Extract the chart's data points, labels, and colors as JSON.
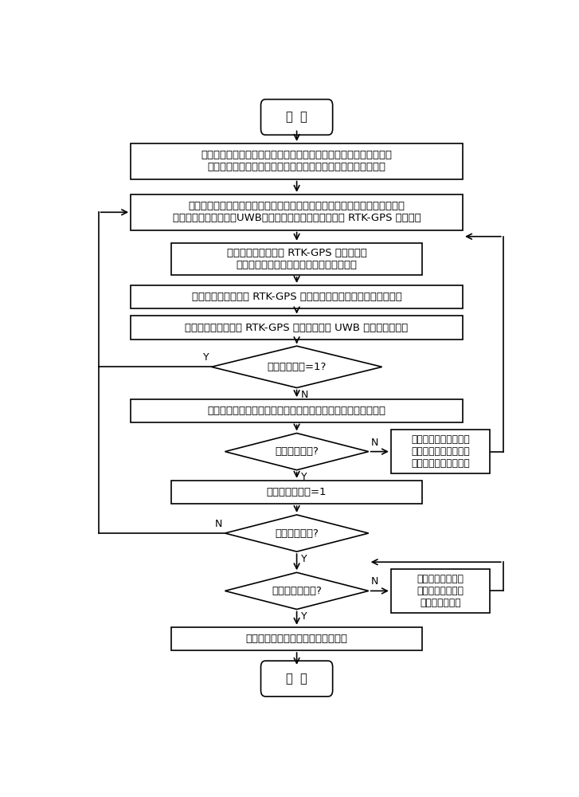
{
  "bg_color": "#ffffff",
  "line_color": "#000000",
  "box_fill": "#ffffff",
  "text_color": "#000000",
  "start_text": "开  始",
  "end_text": "结  束",
  "box1_text": "探测控制主机根据探测任务进行航线规划，设置默认飞行参数、探测\n覆盖率和探测覆盖标志，控制各探测分机到达首条航线起始位置",
  "box2_text": "探测控制主机向各探测分机发送同步探测指令并控制其按设置参数飞行，在指\n令中约定天然电磁场、UWB雷达波、脉冲电磁感应探测的 RTK-GPS 脉冲位置",
  "box3_text": "各探测分机在约定的 RTK-GPS 脉冲时刻与\n探测控制主机一起进行天然电磁场同步探测",
  "box4_text": "各探测分机在约定的 RTK-GPS 脉冲时刻进行脉冲电磁感应同步探测",
  "box5_text": "各探测分机在约定的 RTK-GPS 脉冲时刻进行 UWB 雷达波同步探测",
  "dia1_text": "探测覆盖标志=1?",
  "box6_text": "探测控制主机根据飞行速度、高度和天线波束角计算探测覆盖率",
  "dia2_text": "覆盖率满足否?",
  "box7_text": "计算并设置飞行速度、\n高度，控制各探测分机\n快速返回航线起始位置",
  "box8_text": "置探测覆盖标志=1",
  "dia3_text": "到达航线终点?",
  "dia4_text": "完成规划航线数?",
  "box9_text": "更换航线并快速到\n达其起始位置且清\n除探测覆盖标志",
  "box10_text": "快速返回开始探测前的起飞位置降落",
  "lw": 1.2,
  "fs_main": 9.5,
  "fs_small": 8.8,
  "fs_label": 9.0
}
